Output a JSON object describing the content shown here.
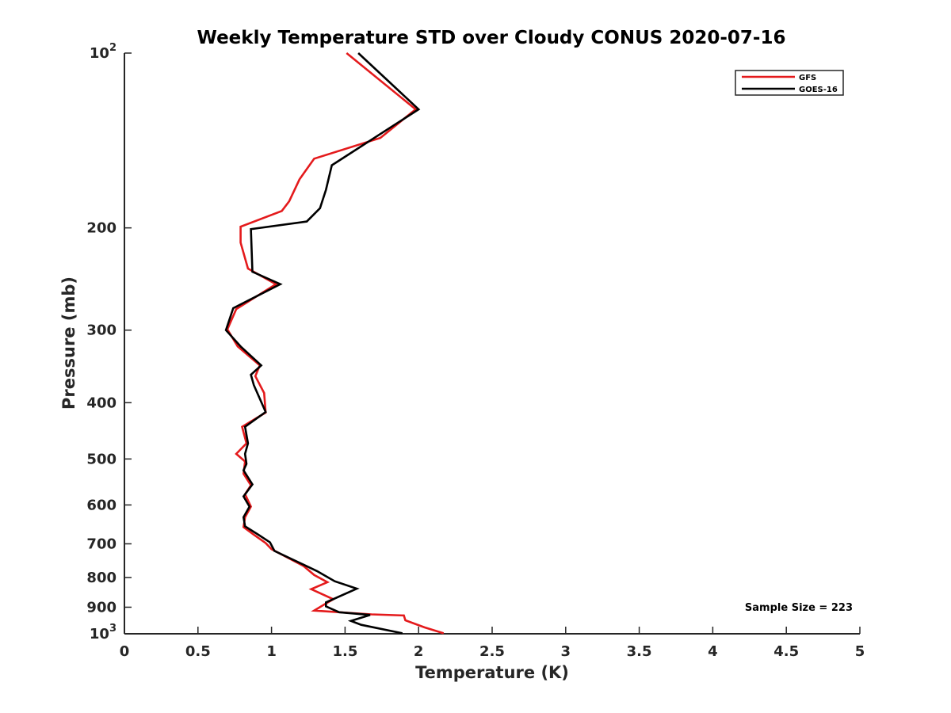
{
  "chart_data": {
    "type": "line",
    "title": "Weekly Temperature STD over Cloudy CONUS 2020-07-16",
    "xlabel": "Temperature (K)",
    "ylabel": "Pressure (mb)",
    "xlim": [
      0,
      5
    ],
    "ylim": [
      100,
      1000
    ],
    "y_scale": "log",
    "y_reversed": true,
    "grid": false,
    "legend_position": "top-right",
    "x_ticks": [
      "0",
      "0.5",
      "1",
      "1.5",
      "2",
      "2.5",
      "3",
      "3.5",
      "4",
      "4.5",
      "5"
    ],
    "y_ticks": [
      {
        "value": 100,
        "base": "10",
        "exp": "2"
      },
      {
        "value": 200,
        "label": "200"
      },
      {
        "value": 300,
        "label": "300"
      },
      {
        "value": 400,
        "label": "400"
      },
      {
        "value": 500,
        "label": "500"
      },
      {
        "value": 600,
        "label": "600"
      },
      {
        "value": 700,
        "label": "700"
      },
      {
        "value": 800,
        "label": "800"
      },
      {
        "value": 900,
        "label": "900"
      },
      {
        "value": 1000,
        "base": "10",
        "exp": "3"
      }
    ],
    "annotation": "Sample Size = 223",
    "series": [
      {
        "name": "GFS",
        "color": "#e41a1c",
        "points": [
          [
            1.51,
            100
          ],
          [
            1.98,
            125
          ],
          [
            1.74,
            140
          ],
          [
            1.29,
            152
          ],
          [
            1.19,
            165
          ],
          [
            1.12,
            180
          ],
          [
            1.07,
            187
          ],
          [
            0.79,
            199
          ],
          [
            0.79,
            212
          ],
          [
            0.84,
            235
          ],
          [
            1.03,
            250
          ],
          [
            0.76,
            276
          ],
          [
            0.7,
            299
          ],
          [
            0.77,
            320
          ],
          [
            0.92,
            345
          ],
          [
            0.89,
            360
          ],
          [
            0.95,
            385
          ],
          [
            0.96,
            416
          ],
          [
            0.8,
            440
          ],
          [
            0.83,
            470
          ],
          [
            0.76,
            490
          ],
          [
            0.82,
            505
          ],
          [
            0.81,
            530
          ],
          [
            0.86,
            555
          ],
          [
            0.82,
            575
          ],
          [
            0.86,
            604
          ],
          [
            0.82,
            630
          ],
          [
            0.81,
            655
          ],
          [
            0.88,
            675
          ],
          [
            0.96,
            698
          ],
          [
            1.0,
            715
          ],
          [
            1.22,
            765
          ],
          [
            1.29,
            792
          ],
          [
            1.38,
            815
          ],
          [
            1.27,
            838
          ],
          [
            1.42,
            872
          ],
          [
            1.36,
            890
          ],
          [
            1.29,
            912
          ],
          [
            1.68,
            926
          ],
          [
            1.9,
            930
          ],
          [
            1.91,
            948
          ],
          [
            2.04,
            975
          ],
          [
            2.17,
            998
          ]
        ]
      },
      {
        "name": "GOES-16",
        "color": "#000000",
        "points": [
          [
            1.59,
            100
          ],
          [
            2.0,
            125
          ],
          [
            1.41,
            156
          ],
          [
            1.37,
            172
          ],
          [
            1.33,
            185
          ],
          [
            1.24,
            195
          ],
          [
            0.86,
            201
          ],
          [
            0.87,
            238
          ],
          [
            1.06,
            250
          ],
          [
            0.74,
            275
          ],
          [
            0.69,
            300
          ],
          [
            0.79,
            320
          ],
          [
            0.93,
            345
          ],
          [
            0.86,
            358
          ],
          [
            0.88,
            373
          ],
          [
            0.96,
            415
          ],
          [
            0.82,
            440
          ],
          [
            0.84,
            470
          ],
          [
            0.82,
            490
          ],
          [
            0.83,
            510
          ],
          [
            0.81,
            523
          ],
          [
            0.87,
            553
          ],
          [
            0.81,
            580
          ],
          [
            0.85,
            604
          ],
          [
            0.81,
            630
          ],
          [
            0.82,
            653
          ],
          [
            0.91,
            675
          ],
          [
            0.99,
            696
          ],
          [
            1.02,
            720
          ],
          [
            1.31,
            780
          ],
          [
            1.43,
            812
          ],
          [
            1.58,
            836
          ],
          [
            1.37,
            883
          ],
          [
            1.37,
            897
          ],
          [
            1.46,
            918
          ],
          [
            1.67,
            928
          ],
          [
            1.54,
            950
          ],
          [
            1.61,
            965
          ],
          [
            1.89,
            998
          ]
        ]
      }
    ]
  }
}
